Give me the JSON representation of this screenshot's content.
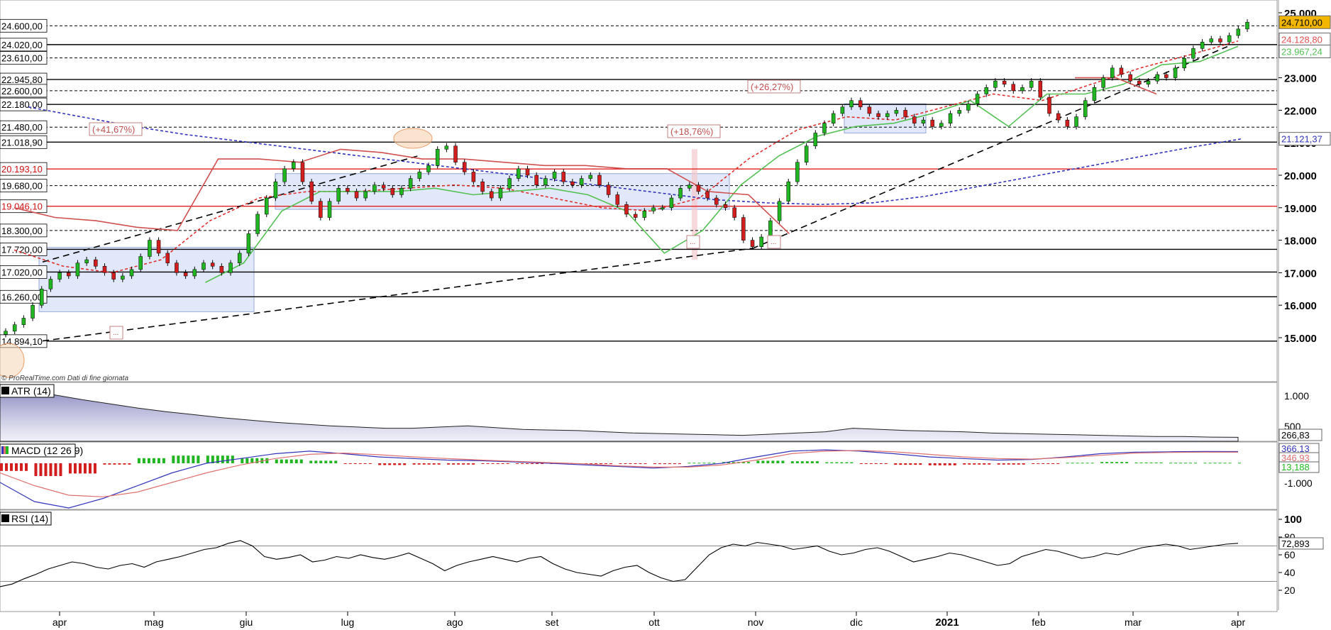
{
  "footer_credit": "© ProRealTime.com  Dati di fine giornata",
  "chart_data": [
    {
      "type": "candlestick",
      "panel": "price",
      "x_labels": [
        "apr",
        "mag",
        "giu",
        "lug",
        "ago",
        "set",
        "ott",
        "nov",
        "dic",
        "2021",
        "feb",
        "mar",
        "apr"
      ],
      "y_ticks": [
        "25.000",
        "24.000",
        "23.000",
        "22.000",
        "21.000",
        "20.000",
        "19.000",
        "18.000",
        "17.000",
        "16.000",
        "15.000"
      ],
      "ylim": [
        14000,
        25150
      ],
      "axis_side": "right",
      "level_labels": [
        {
          "text": "24.600,00",
          "value": 24600,
          "line": "dashed-black"
        },
        {
          "text": "24.020,00",
          "value": 24020,
          "line": "solid-black"
        },
        {
          "text": "23.610,00",
          "value": 23610,
          "line": "dashed-black"
        },
        {
          "text": "22.945,80",
          "value": 22945.8,
          "line": "solid-black"
        },
        {
          "text": "22.600,00",
          "value": 22600,
          "line": "dashed-black"
        },
        {
          "text": "22.180,00",
          "value": 22180,
          "line": "solid-black"
        },
        {
          "text": "21.480,00",
          "value": 21480,
          "line": "dashed-black"
        },
        {
          "text": "21.018,90",
          "value": 21018.9,
          "line": "solid-black"
        },
        {
          "text": "20.193,10",
          "value": 20193.1,
          "line": "solid-red"
        },
        {
          "text": "19.680,00",
          "value": 19680,
          "line": "dashed-black"
        },
        {
          "text": "19.046,10",
          "value": 19046.1,
          "line": "solid-red"
        },
        {
          "text": "18.300,00",
          "value": 18300,
          "line": "dashed-black"
        },
        {
          "text": "17.720,00",
          "value": 17720,
          "line": "solid-black"
        },
        {
          "text": "17.020,00",
          "value": 17020,
          "line": "solid-black"
        },
        {
          "text": "16.260,00",
          "value": 16260,
          "line": "solid-black"
        },
        {
          "text": "14.894,10",
          "value": 14894.1,
          "line": "solid-black"
        }
      ],
      "annotations": [
        "(+41,67%)",
        "(+18,76%)",
        "(+26,27%)",
        "..."
      ],
      "last_values": [
        {
          "text": "24.710,00",
          "color": "#F2B600"
        },
        {
          "text": "24.128,80",
          "color": "#E05050"
        },
        {
          "text": "23.967,24",
          "color": "#55C055"
        },
        {
          "text": "21.121,37",
          "color": "#3333BB"
        }
      ],
      "close_series": [
        15200,
        15400,
        15600,
        16000,
        16500,
        16800,
        17000,
        16900,
        17300,
        17400,
        17200,
        17000,
        16800,
        16900,
        17100,
        17500,
        18000,
        17600,
        17300,
        17000,
        16900,
        17100,
        17300,
        17200,
        17000,
        17300,
        17600,
        18200,
        18800,
        19300,
        19800,
        20200,
        20400,
        19800,
        19200,
        18700,
        19200,
        19600,
        19500,
        19300,
        19500,
        19700,
        19600,
        19400,
        19600,
        19900,
        20100,
        20300,
        20800,
        20900,
        20400,
        20100,
        19800,
        19500,
        19300,
        19600,
        19900,
        20200,
        20000,
        19700,
        19900,
        20100,
        19800,
        19700,
        19900,
        20000,
        19700,
        19400,
        19100,
        18800,
        18700,
        18900,
        19000,
        19000,
        19300,
        19600,
        19700,
        19500,
        19300,
        19100,
        19000,
        18700,
        18000,
        17800,
        18100,
        18600,
        19200,
        19800,
        20400,
        20900,
        21300,
        21600,
        21900,
        22100,
        22300,
        22100,
        21900,
        21800,
        21900,
        22000,
        21800,
        21600,
        21700,
        21500,
        21600,
        21900,
        22000,
        22200,
        22500,
        22700,
        22900,
        22800,
        22600,
        22700,
        22900,
        22400,
        21900,
        21700,
        21500,
        21800,
        22300,
        22700,
        23000,
        23300,
        23100,
        22900,
        22800,
        22900,
        23100,
        23000,
        23300,
        23600,
        23900,
        24100,
        24200,
        24100,
        24300,
        24500,
        24710
      ],
      "series": [
        {
          "name": "ma-dashed-blue",
          "color": "#3333BB",
          "style": "dashed",
          "values": [
            22100,
            21800,
            21500,
            21250,
            21050,
            20850,
            20650,
            20450,
            20250,
            20050,
            19850,
            19650,
            19450,
            19250,
            19150,
            19100,
            19150,
            19350,
            19650,
            19950,
            20250,
            20550,
            20850,
            21121
          ]
        },
        {
          "name": "ma-dashed-red",
          "color": "#E03030",
          "style": "dashed",
          "values": [
            17700,
            17200,
            17000,
            17400,
            18600,
            19300,
            19500,
            19500,
            19600,
            19700,
            19600,
            19300,
            19000,
            18900,
            19300,
            20500,
            21400,
            21800,
            21700,
            22100,
            22500,
            22300,
            22800,
            23300,
            23700,
            24129
          ]
        },
        {
          "name": "trailing-green",
          "color": "#55C055",
          "style": "solid",
          "values": [
            null,
            null,
            null,
            null,
            null,
            16700,
            17300,
            18900,
            19500,
            19500,
            19500,
            19600,
            19400,
            19500,
            19600,
            19400,
            18900,
            17600,
            18300,
            19700,
            20600,
            21200,
            21500,
            21600,
            21900,
            22300,
            21500,
            22500,
            22500,
            22800,
            23400,
            23500,
            23967
          ]
        },
        {
          "name": "trailing-red",
          "color": "#D05050",
          "style": "solid",
          "values": [
            19000,
            18700,
            18600,
            18400,
            18300,
            20500,
            20500,
            20400,
            20800,
            20700,
            20500,
            20500,
            20400,
            20300,
            20300,
            20200,
            20200,
            19500,
            19400,
            18200,
            null,
            null,
            null,
            null,
            null,
            null,
            23000,
            23000,
            22500,
            null,
            null
          ]
        }
      ]
    },
    {
      "type": "area",
      "panel": "indicator",
      "title": "ATR (14)",
      "y_ticks": [
        "1.000",
        "500"
      ],
      "last_value": "266,83",
      "values": [
        1100,
        1050,
        980,
        900,
        830,
        760,
        700,
        650,
        600,
        560,
        520,
        490,
        460,
        440,
        420,
        420,
        440,
        460,
        430,
        400,
        390,
        380,
        360,
        340,
        330,
        320,
        310,
        300,
        320,
        340,
        360,
        420,
        400,
        380,
        370,
        360,
        340,
        330,
        320,
        310,
        300,
        290,
        280,
        280,
        270,
        267
      ]
    },
    {
      "type": "line",
      "panel": "indicator",
      "title": "MACD (12 26 9)",
      "y_ticks": [
        "-1.000"
      ],
      "last_values": [
        "366,13",
        "346,93",
        "13,188"
      ],
      "series": [
        {
          "name": "macd",
          "color": "#3333BB",
          "values": [
            -600,
            -1200,
            -1400,
            -1100,
            -700,
            -300,
            0,
            150,
            300,
            380,
            300,
            200,
            150,
            100,
            80,
            40,
            0,
            -50,
            -100,
            -150,
            -100,
            0,
            200,
            380,
            420,
            380,
            300,
            200,
            150,
            100,
            120,
            200,
            300,
            350,
            360,
            370,
            366
          ]
        },
        {
          "name": "signal",
          "color": "#E07070",
          "values": [
            -300,
            -700,
            -1000,
            -1050,
            -900,
            -600,
            -300,
            -50,
            150,
            280,
            320,
            270,
            200,
            150,
            100,
            60,
            20,
            -20,
            -80,
            -120,
            -120,
            -50,
            100,
            300,
            380,
            400,
            360,
            280,
            200,
            150,
            130,
            180,
            250,
            320,
            340,
            350,
            347
          ]
        }
      ]
    },
    {
      "type": "line",
      "panel": "indicator",
      "title": "RSI (14)",
      "y_ticks": [
        "100",
        "80",
        "60",
        "40",
        "20"
      ],
      "ylim": [
        0,
        100
      ],
      "last_value": "72,893",
      "values": [
        24,
        27,
        33,
        38,
        44,
        48,
        52,
        50,
        46,
        44,
        48,
        50,
        46,
        52,
        55,
        58,
        62,
        66,
        68,
        73,
        76,
        70,
        58,
        55,
        57,
        60,
        52,
        54,
        58,
        56,
        60,
        57,
        55,
        58,
        62,
        56,
        50,
        42,
        48,
        52,
        55,
        58,
        55,
        52,
        56,
        58,
        50,
        44,
        40,
        38,
        36,
        42,
        46,
        48,
        40,
        34,
        30,
        32,
        46,
        60,
        68,
        72,
        70,
        74,
        72,
        70,
        66,
        68,
        70,
        64,
        60,
        62,
        66,
        68,
        64,
        58,
        52,
        55,
        58,
        62,
        60,
        56,
        52,
        48,
        50,
        58,
        62,
        66,
        64,
        60,
        56,
        58,
        62,
        60,
        64,
        68,
        70,
        72,
        70,
        66,
        68,
        70,
        72,
        73
      ]
    }
  ]
}
